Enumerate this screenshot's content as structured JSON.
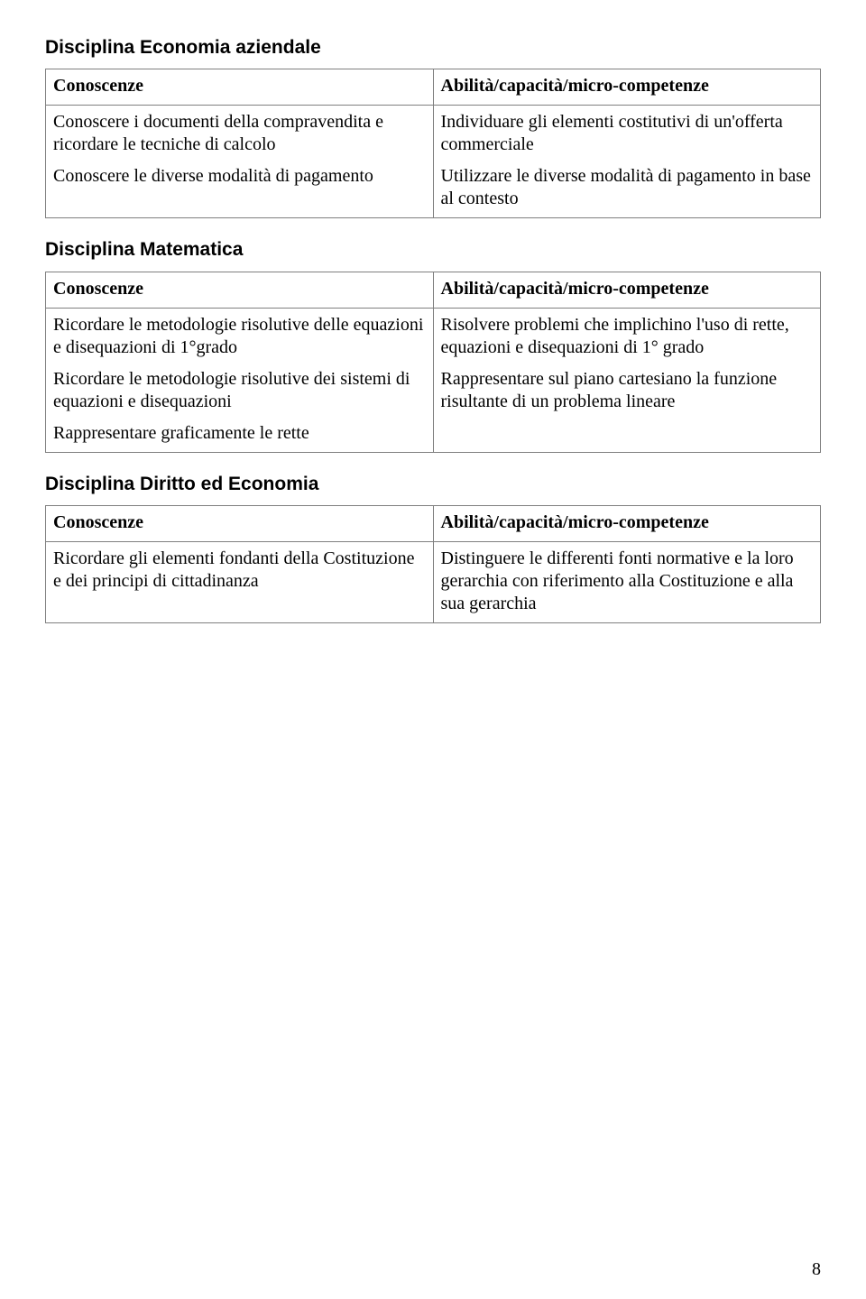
{
  "page_number": "8",
  "sections": [
    {
      "title": "Disciplina Economia aziendale",
      "left_header": "Conoscenze",
      "right_header": "Abilità/capacità/micro-competenze",
      "left_body": [
        "Conoscere i documenti della compravendita e ricordare le tecniche di calcolo",
        "Conoscere le diverse modalità di pagamento"
      ],
      "right_body": [
        "Individuare gli elementi costitutivi di un'offerta commerciale",
        "Utilizzare le diverse modalità di pagamento in base al contesto"
      ]
    },
    {
      "title": "Disciplina Matematica",
      "left_header": "Conoscenze",
      "right_header": "Abilità/capacità/micro-competenze",
      "left_body": [
        "Ricordare le metodologie risolutive delle equazioni e disequazioni di 1°grado",
        "Ricordare le metodologie risolutive dei sistemi di equazioni e disequazioni",
        "Rappresentare graficamente le rette"
      ],
      "right_body": [
        "Risolvere problemi che  implichino l'uso di rette, equazioni e disequazioni di 1° grado",
        "Rappresentare sul piano cartesiano la funzione risultante di un problema lineare"
      ]
    },
    {
      "title": "Disciplina Diritto ed Economia",
      "left_header": "Conoscenze",
      "right_header": "Abilità/capacità/micro-competenze",
      "left_body": [
        "Ricordare gli elementi fondanti della Costituzione e dei principi di cittadinanza"
      ],
      "right_body": [
        "Distinguere le differenti fonti normative e la loro gerarchia con riferimento alla Costituzione e alla sua gerarchia"
      ]
    }
  ]
}
